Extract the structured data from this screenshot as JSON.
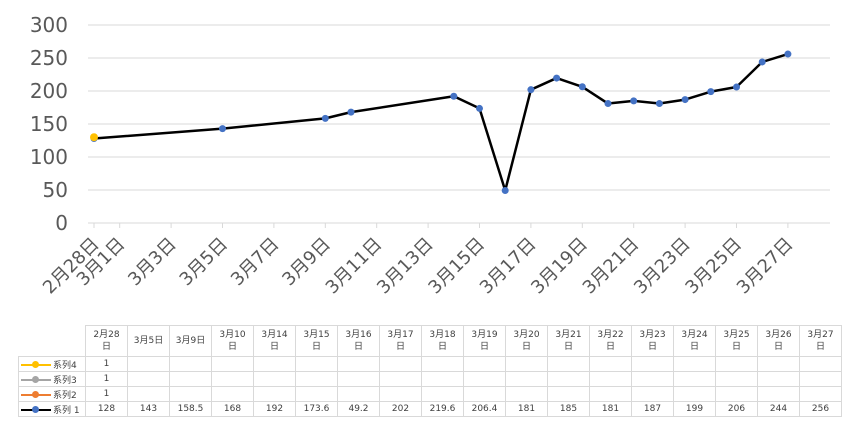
{
  "chart_data": {
    "type": "line",
    "title": "",
    "xlabel": "",
    "ylabel": "",
    "ylim": [
      0,
      300
    ],
    "yticks": [
      "0",
      "50",
      "100",
      "150",
      "200",
      "250",
      "300"
    ],
    "xaxis_tick_labels": [
      "2月28日",
      "3月1日",
      "3月3日",
      "3月5日",
      "3月7日",
      "3月9日",
      "3月11日",
      "3月13日",
      "3月15日",
      "3月17日",
      "3月19日",
      "3月21日",
      "3月23日",
      "3月25日",
      "3月27日"
    ],
    "table_categories": [
      "2月28日",
      "3月5日",
      "3月9日",
      "3月10日",
      "3月14日",
      "3月15日",
      "3月16日",
      "3月17日",
      "3月18日",
      "3月19日",
      "3月20日",
      "3月21日",
      "3月22日",
      "3月23日",
      "3月24日",
      "3月25日",
      "3月26日",
      "3月27日"
    ],
    "series": [
      {
        "name": "系列4",
        "color": "#ffc000",
        "values": [
          1
        ]
      },
      {
        "name": "系列3",
        "color": "#a5a5a5",
        "values": [
          1
        ]
      },
      {
        "name": "系列2",
        "color": "#ed7d31",
        "values": [
          1
        ]
      },
      {
        "name": "系列 1",
        "color": "#000000",
        "marker_color": "#4472c4",
        "values": [
          128,
          143,
          158.5,
          168,
          192,
          173.6,
          49.2,
          202,
          219.6,
          206.4,
          181,
          185,
          181,
          187,
          199,
          206,
          244,
          256
        ]
      }
    ],
    "series4_chart_value": 130,
    "grid": true,
    "legend": "data-table"
  }
}
